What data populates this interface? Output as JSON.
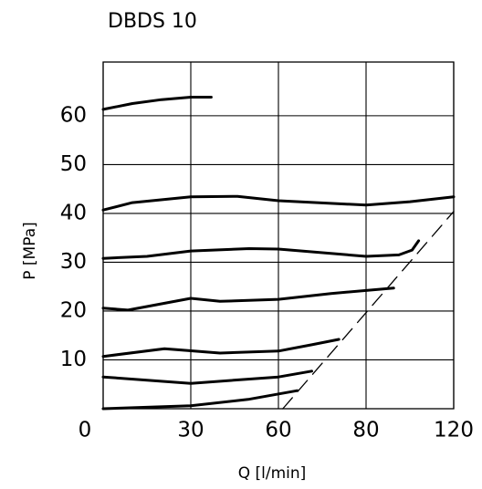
{
  "chart_data": {
    "type": "line",
    "title": "DBDS 10",
    "xlabel": "Q [l/min]",
    "ylabel": "P [MPa]",
    "xticks": [
      0,
      30,
      60,
      80,
      120
    ],
    "xlim": [
      0,
      120
    ],
    "xscale": "piecewise-by-ticks",
    "yticks": [
      10,
      20,
      30,
      40,
      50,
      60
    ],
    "ylim": [
      0,
      71
    ],
    "grid": true,
    "series": [
      {
        "color": "#000000",
        "x": [
          0,
          10,
          20,
          30,
          37
        ],
        "values": [
          61.3,
          62.5,
          63.3,
          63.8,
          63.8
        ]
      },
      {
        "color": "#000000",
        "x": [
          0,
          10,
          30,
          46,
          60,
          80,
          100,
          120
        ],
        "values": [
          40.7,
          42.2,
          43.4,
          43.5,
          42.6,
          41.7,
          42.4,
          43.4
        ]
      },
      {
        "color": "#000000",
        "x": [
          0,
          15,
          30,
          50,
          60,
          80,
          95,
          101,
          104
        ],
        "values": [
          30.8,
          31.2,
          32.3,
          32.8,
          32.7,
          31.2,
          31.5,
          32.5,
          34.4
        ]
      },
      {
        "color": "#000000",
        "x": [
          0,
          8.5,
          30,
          40,
          60,
          72,
          92.6
        ],
        "values": [
          20.6,
          20.2,
          22.6,
          22,
          22.4,
          23.6,
          24.7
        ]
      },
      {
        "color": "#000000",
        "x": [
          0,
          21,
          40,
          60,
          67.6,
          73.8
        ],
        "values": [
          10.7,
          12.3,
          11.4,
          11.8,
          13.1,
          14.2
        ]
      },
      {
        "color": "#000000",
        "x": [
          0,
          30,
          60,
          67.6
        ],
        "values": [
          6.5,
          5.2,
          6.5,
          7.7
        ]
      },
      {
        "color": "#000000",
        "x": [
          0,
          30,
          49.6,
          64.3
        ],
        "values": [
          0,
          0.6,
          1.9,
          3.7
        ]
      }
    ],
    "limit_line": {
      "color": "#000000",
      "dashed": true,
      "x": [
        61,
        120
      ],
      "values": [
        0,
        40.4
      ]
    }
  }
}
